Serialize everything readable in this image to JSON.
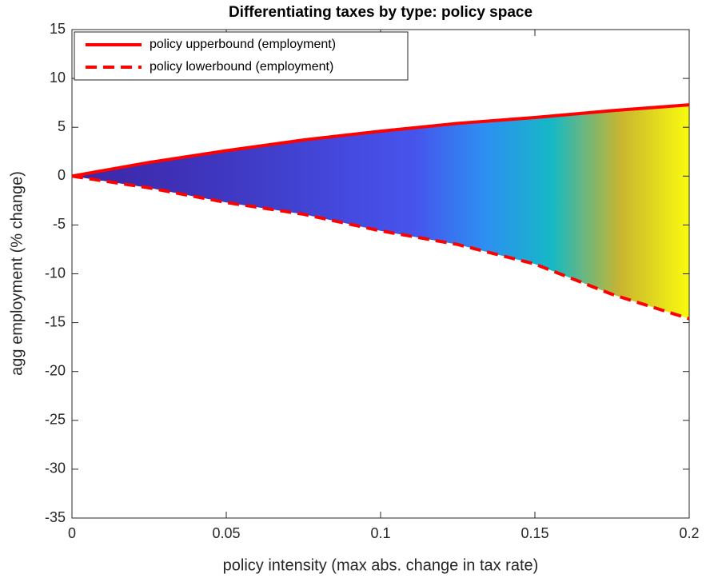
{
  "chart_data": {
    "type": "line",
    "title": "Differentiating taxes by type: policy space",
    "xlabel": "policy intensity (max abs. change in tax rate)",
    "ylabel": "agg employment (% change)",
    "x": [
      0,
      0.025,
      0.05,
      0.075,
      0.1,
      0.125,
      0.15,
      0.175,
      0.2
    ],
    "series": [
      {
        "name": "policy upperbound (employment)",
        "color": "#ff0000",
        "dash": false,
        "values": [
          0,
          1.4,
          2.6,
          3.7,
          4.6,
          5.4,
          6.0,
          6.7,
          7.3
        ]
      },
      {
        "name": "policy lowerbound (employment)",
        "color": "#ff0000",
        "dash": true,
        "values": [
          0,
          -1.2,
          -2.7,
          -3.9,
          -5.6,
          -7.0,
          -9.0,
          -12.1,
          -14.6
        ]
      }
    ],
    "fill_between": true,
    "fill_colormap": [
      "#3e26a8",
      "#3d2db0",
      "#3f35be",
      "#4040cc",
      "#4549df",
      "#4654ec",
      "#2e8ef2",
      "#15b8c6",
      "#c9b530",
      "#f9fb0e"
    ],
    "xlim": [
      0,
      0.2
    ],
    "xticks": [
      0,
      0.05,
      0.1,
      0.15,
      0.2
    ],
    "ylim": [
      -35,
      15
    ],
    "yticks": [
      -35,
      -30,
      -25,
      -20,
      -15,
      -10,
      -5,
      0,
      5,
      10,
      15
    ],
    "legend": "top-left"
  }
}
